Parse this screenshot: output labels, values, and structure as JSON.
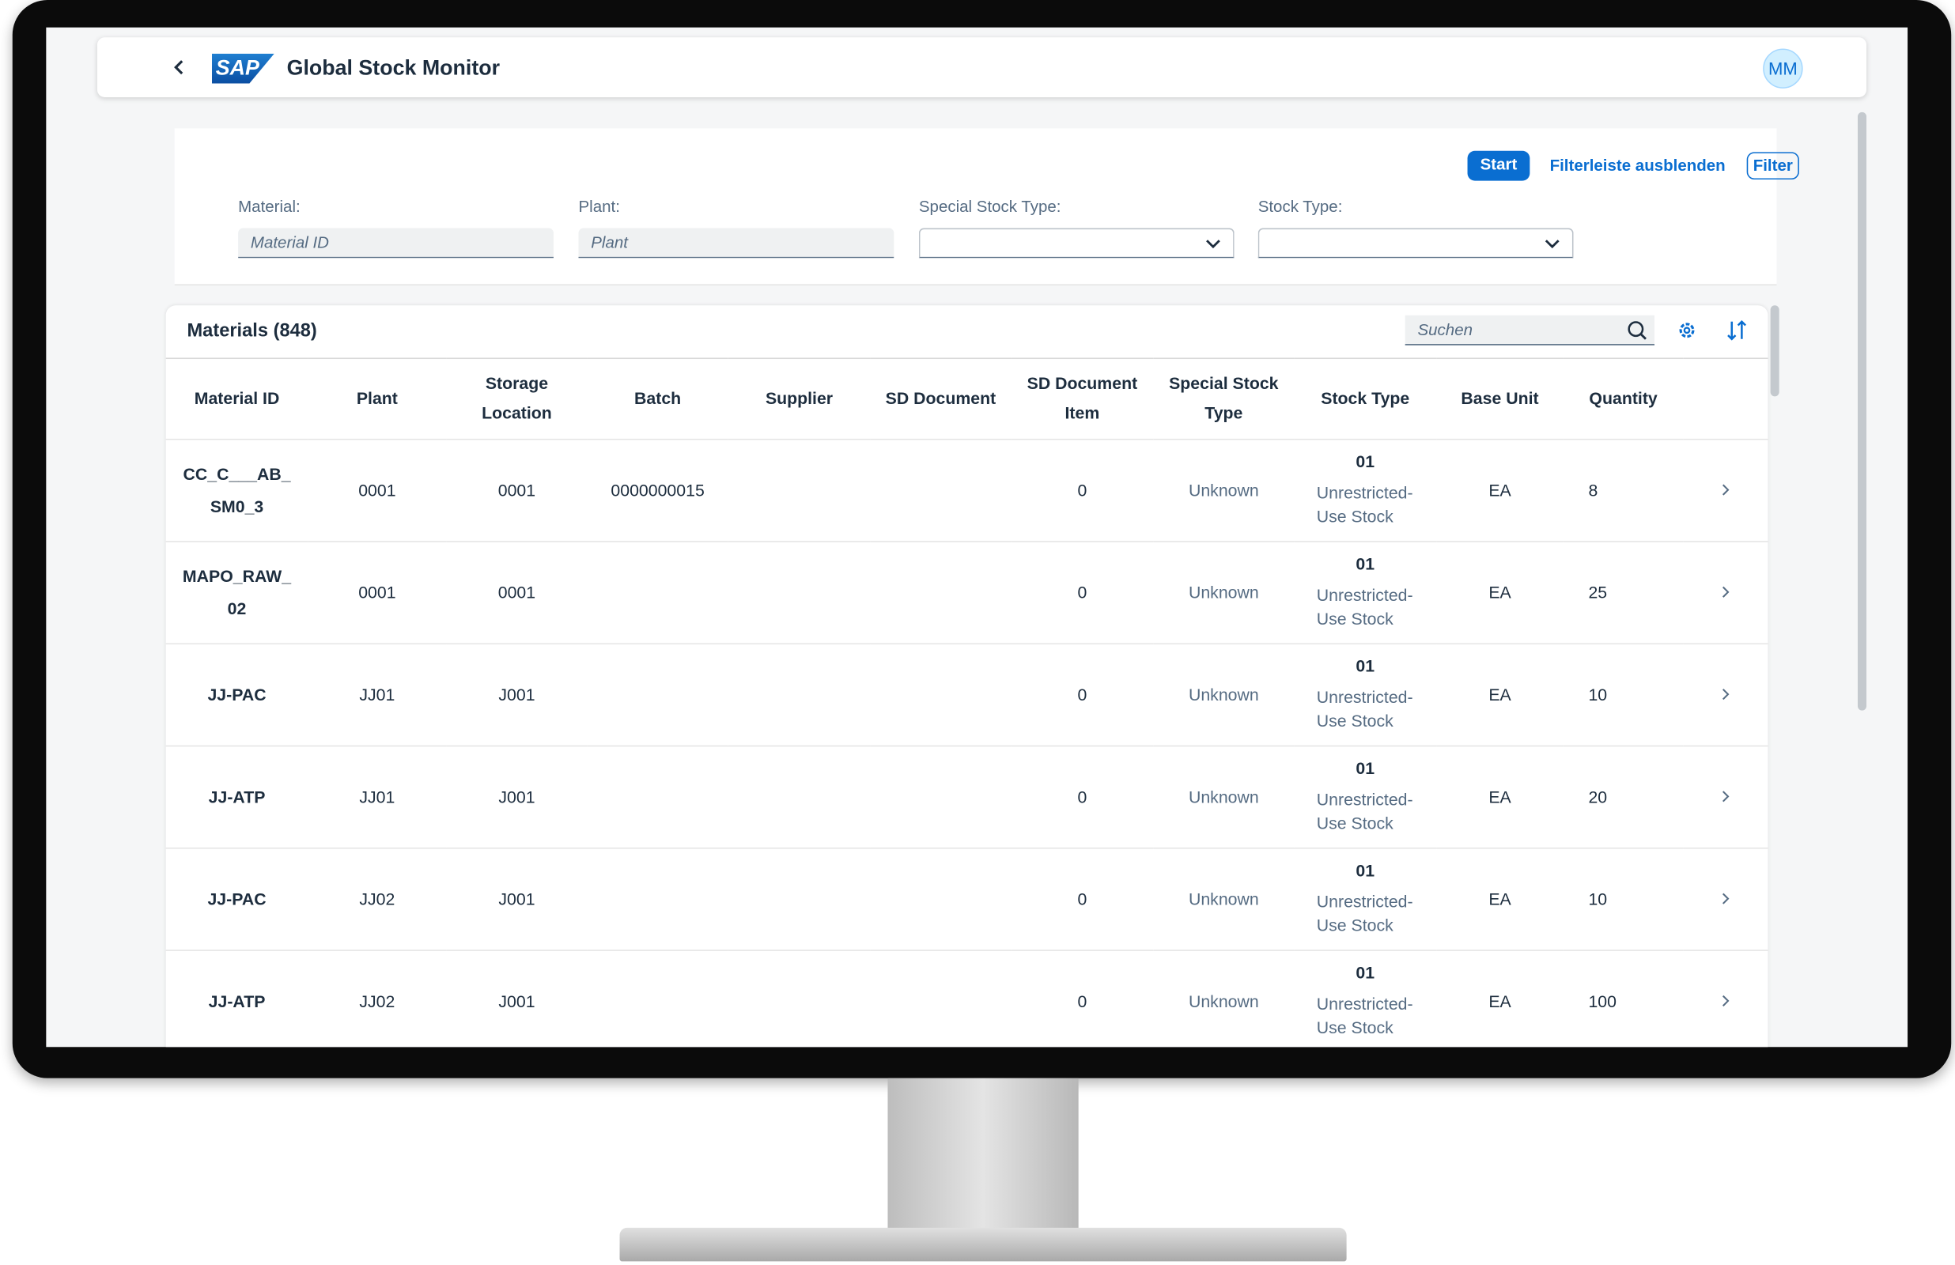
{
  "header": {
    "logo": "SAP",
    "title": "Global Stock Monitor",
    "avatar": "MM"
  },
  "filter_bar": {
    "start": "Start",
    "hide": "Filterleiste ausblenden",
    "filter": "Filter",
    "fields": [
      {
        "label": "Material:",
        "placeholder": "Material ID"
      },
      {
        "label": "Plant:",
        "placeholder": "Plant"
      },
      {
        "label": "Special Stock Type:"
      },
      {
        "label": "Stock Type:"
      }
    ]
  },
  "table": {
    "title": "Materials (848)",
    "search": "Suchen",
    "columns": [
      "Material ID",
      "Plant",
      "Storage Location",
      "Batch",
      "Supplier",
      "SD Document",
      "SD Document Item",
      "Special Stock Type",
      "Stock Type",
      "Base Unit",
      "Quantity"
    ],
    "rows": [
      {
        "material_id": "CC_C___AB_SM0_3",
        "plant": "0001",
        "storage_location": "0001",
        "batch": "0000000015",
        "sd_document_item": "0",
        "special_stock_type": "Unknown",
        "stock_type_code": "01",
        "stock_type_text": "Unrestricted-Use Stock",
        "base_unit": "EA",
        "quantity": "8"
      },
      {
        "material_id": "MAPO_RAW_02",
        "plant": "0001",
        "storage_location": "0001",
        "sd_document_item": "0",
        "special_stock_type": "Unknown",
        "stock_type_code": "01",
        "stock_type_text": "Unrestricted-Use Stock",
        "base_unit": "EA",
        "quantity": "25"
      },
      {
        "material_id": "JJ-PAC",
        "plant": "JJ01",
        "storage_location": "J001",
        "sd_document_item": "0",
        "special_stock_type": "Unknown",
        "stock_type_code": "01",
        "stock_type_text": "Unrestricted-Use Stock",
        "base_unit": "EA",
        "quantity": "10"
      },
      {
        "material_id": "JJ-ATP",
        "plant": "JJ01",
        "storage_location": "J001",
        "sd_document_item": "0",
        "special_stock_type": "Unknown",
        "stock_type_code": "01",
        "stock_type_text": "Unrestricted-Use Stock",
        "base_unit": "EA",
        "quantity": "20"
      },
      {
        "material_id": "JJ-PAC",
        "plant": "JJ02",
        "storage_location": "J001",
        "sd_document_item": "0",
        "special_stock_type": "Unknown",
        "stock_type_code": "01",
        "stock_type_text": "Unrestricted-Use Stock",
        "base_unit": "EA",
        "quantity": "10"
      },
      {
        "material_id": "JJ-ATP",
        "plant": "JJ02",
        "storage_location": "J001",
        "sd_document_item": "0",
        "special_stock_type": "Unknown",
        "stock_type_code": "01",
        "stock_type_text": "Unrestricted-Use Stock",
        "base_unit": "EA",
        "quantity": "100"
      }
    ]
  }
}
